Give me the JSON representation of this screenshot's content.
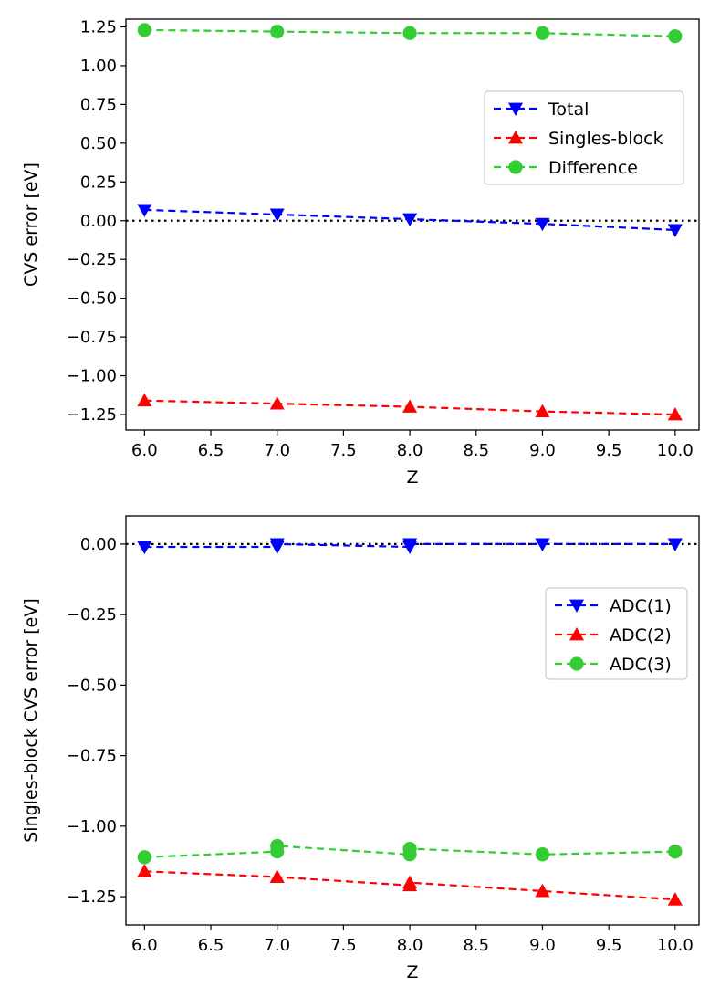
{
  "chart_data": [
    {
      "type": "line",
      "xlabel": "Z",
      "ylabel": "CVS error [eV]",
      "xlim": [
        5.86,
        10.18
      ],
      "ylim": [
        -1.35,
        1.3
      ],
      "xticks": [
        6.0,
        6.5,
        7.0,
        7.5,
        8.0,
        8.5,
        9.0,
        9.5,
        10.0
      ],
      "xtick_labels": [
        "6.0",
        "6.5",
        "7.0",
        "7.5",
        "8.0",
        "8.5",
        "9.0",
        "9.5",
        "10.0"
      ],
      "yticks": [
        1.25,
        1.0,
        0.75,
        0.5,
        0.25,
        0.0,
        -0.25,
        -0.5,
        -0.75,
        -1.0,
        -1.25
      ],
      "ytick_labels": [
        "1.25",
        "1.00",
        "0.75",
        "0.50",
        "0.25",
        "0.00",
        "−0.25",
        "−0.50",
        "−0.75",
        "−1.00",
        "−1.25"
      ],
      "reference_line": 0.0,
      "legend_position": "upper-right",
      "series": [
        {
          "name": "Total",
          "color": "#0000ff",
          "marker": "triangle-down",
          "x": [
            6,
            7,
            8,
            9,
            10
          ],
          "values": [
            0.07,
            0.04,
            0.01,
            -0.02,
            -0.06
          ]
        },
        {
          "name": "Singles-block",
          "color": "#ff0000",
          "marker": "triangle-up",
          "x": [
            6,
            7,
            8,
            9,
            10
          ],
          "values": [
            -1.16,
            -1.18,
            -1.2,
            -1.23,
            -1.25
          ]
        },
        {
          "name": "Difference",
          "color": "#32cd32",
          "marker": "circle",
          "x": [
            6,
            7,
            8,
            9,
            10
          ],
          "values": [
            1.23,
            1.22,
            1.21,
            1.21,
            1.19
          ]
        }
      ]
    },
    {
      "type": "line",
      "xlabel": "Z",
      "ylabel": "Singles-block CVS error [eV]",
      "xlim": [
        5.86,
        10.18
      ],
      "ylim": [
        -1.35,
        0.1
      ],
      "xticks": [
        6.0,
        6.5,
        7.0,
        7.5,
        8.0,
        8.5,
        9.0,
        9.5,
        10.0
      ],
      "xtick_labels": [
        "6.0",
        "6.5",
        "7.0",
        "7.5",
        "8.0",
        "8.5",
        "9.0",
        "9.5",
        "10.0"
      ],
      "yticks": [
        0.0,
        -0.25,
        -0.5,
        -0.75,
        -1.0,
        -1.25
      ],
      "ytick_labels": [
        "0.00",
        "−0.25",
        "−0.50",
        "−0.75",
        "−1.00",
        "−1.25"
      ],
      "reference_line": 0.0,
      "legend_position": "right",
      "series": [
        {
          "name": "ADC(1)",
          "color": "#0000ff",
          "marker": "triangle-down",
          "x": [
            6,
            6,
            7,
            7,
            8,
            8,
            9,
            9,
            10,
            10
          ],
          "values": [
            -0.01,
            -0.01,
            -0.01,
            0.0,
            -0.01,
            0.0,
            0.0,
            0.0,
            0.0,
            0.0
          ]
        },
        {
          "name": "ADC(2)",
          "color": "#ff0000",
          "marker": "triangle-up",
          "x": [
            6,
            6,
            7,
            7,
            8,
            8,
            9,
            9,
            10,
            10
          ],
          "values": [
            -1.16,
            -1.16,
            -1.18,
            -1.18,
            -1.21,
            -1.2,
            -1.23,
            -1.23,
            -1.26,
            -1.26
          ]
        },
        {
          "name": "ADC(3)",
          "color": "#32cd32",
          "marker": "circle",
          "x": [
            6,
            6,
            7,
            7,
            8,
            8,
            9,
            9,
            10,
            10
          ],
          "values": [
            -1.11,
            -1.11,
            -1.09,
            -1.07,
            -1.1,
            -1.08,
            -1.1,
            -1.1,
            -1.09,
            -1.09
          ]
        }
      ]
    }
  ]
}
